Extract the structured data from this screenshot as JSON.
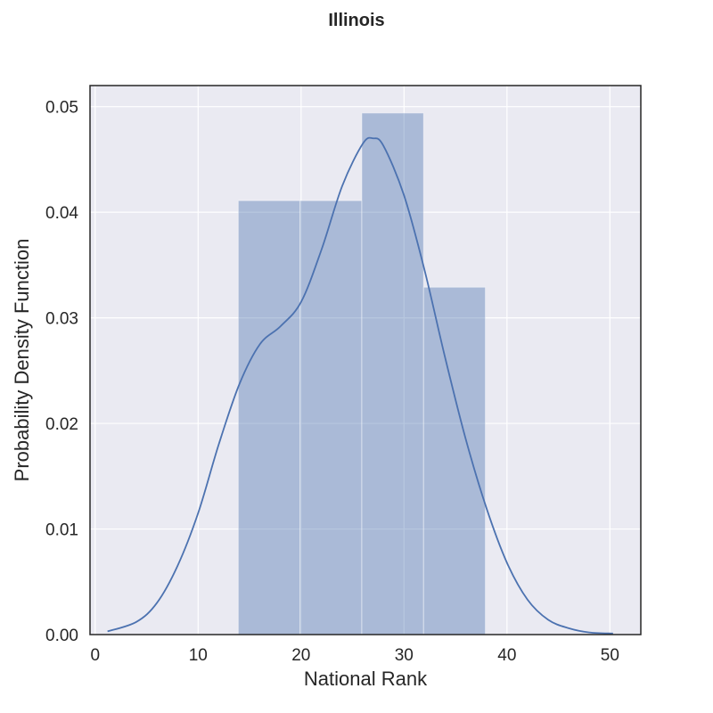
{
  "chart_data": {
    "type": "bar",
    "title": "Illinois",
    "xlabel": "National Rank",
    "ylabel": "Probability Density Function",
    "xlim": [
      -0.5,
      53.0
    ],
    "ylim": [
      0.0,
      0.052
    ],
    "x_ticks": [
      0,
      10,
      20,
      30,
      40,
      50
    ],
    "y_ticks": [
      0.0,
      0.01,
      0.02,
      0.03,
      0.04,
      0.05
    ],
    "y_tick_labels": [
      "0.00",
      "0.01",
      "0.02",
      "0.03",
      "0.04",
      "0.05"
    ],
    "grid": true,
    "histogram_bins": [
      {
        "x0": 13.9,
        "x1": 19.9,
        "density": 0.0411
      },
      {
        "x0": 19.9,
        "x1": 25.9,
        "density": 0.0411
      },
      {
        "x0": 25.9,
        "x1": 31.9,
        "density": 0.0494
      },
      {
        "x0": 31.9,
        "x1": 37.9,
        "density": 0.0329
      }
    ],
    "kde": {
      "x": [
        1.2,
        4,
        6,
        8,
        10,
        12,
        14,
        16,
        18,
        20,
        22,
        24,
        26,
        27,
        28,
        30,
        32,
        34,
        36,
        38,
        40,
        42,
        44,
        46,
        48,
        50.3
      ],
      "y": [
        0.0003,
        0.0012,
        0.003,
        0.0065,
        0.0115,
        0.018,
        0.0237,
        0.0275,
        0.0292,
        0.0315,
        0.0365,
        0.0425,
        0.0465,
        0.047,
        0.0463,
        0.0416,
        0.0345,
        0.0262,
        0.0185,
        0.012,
        0.0068,
        0.0033,
        0.0014,
        0.0006,
        0.0002,
        0.0001
      ]
    },
    "colors": {
      "plot_background": "#eaeaf2",
      "grid": "#ffffff",
      "bar_fill": "#4c72b0",
      "bar_opacity": 0.4,
      "kde_line": "#4c72b0",
      "axes_edge": "#262626"
    }
  }
}
